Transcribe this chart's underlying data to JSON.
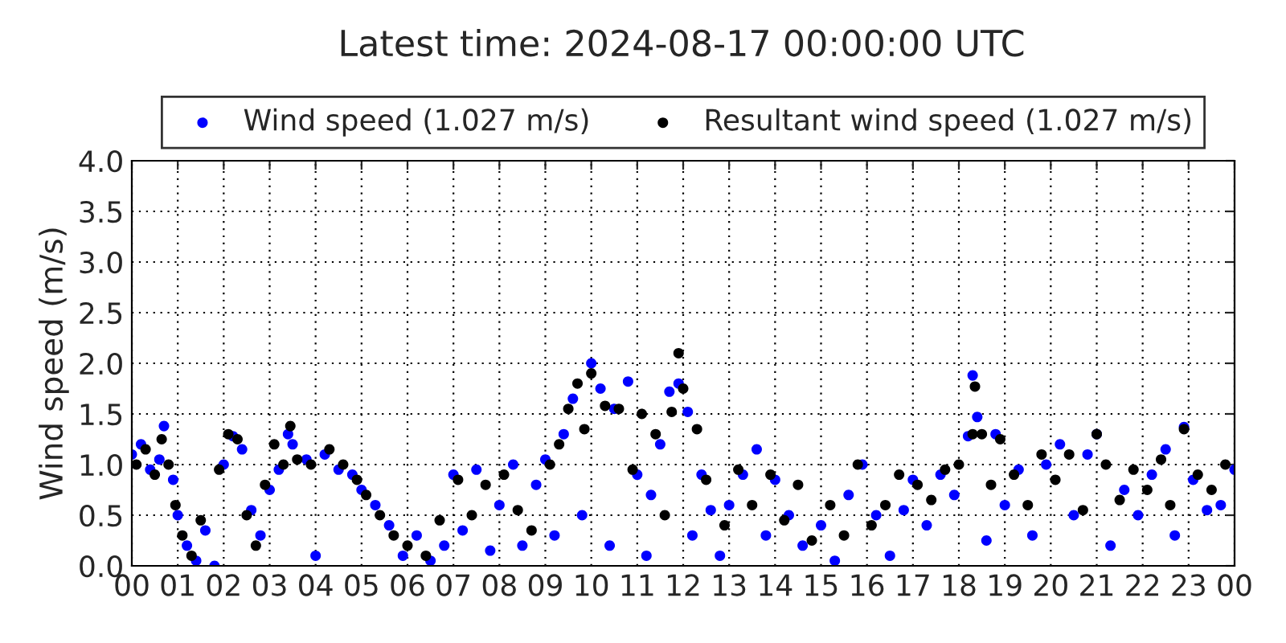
{
  "chart_data": {
    "type": "scatter",
    "title": "Latest time: 2024-08-17 00:00:00 UTC",
    "ylabel": "Wind speed (m/s)",
    "series": [
      {
        "name": "Wind speed (1.027 m/s)",
        "color": "#0000ff",
        "x": [
          0.0,
          0.2,
          0.4,
          0.6,
          0.7,
          0.9,
          1.0,
          1.2,
          1.4,
          1.6,
          1.8,
          2.0,
          2.2,
          2.4,
          2.6,
          2.8,
          3.0,
          3.2,
          3.4,
          3.5,
          3.8,
          4.0,
          4.2,
          4.5,
          4.8,
          5.0,
          5.3,
          5.6,
          5.9,
          6.2,
          6.5,
          6.8,
          7.0,
          7.2,
          7.5,
          7.8,
          8.0,
          8.3,
          8.5,
          8.8,
          9.0,
          9.2,
          9.4,
          9.6,
          9.8,
          10.0,
          10.2,
          10.4,
          10.5,
          10.8,
          11.0,
          11.2,
          11.3,
          11.5,
          11.7,
          11.9,
          12.1,
          12.2,
          12.4,
          12.6,
          12.8,
          13.0,
          13.3,
          13.6,
          13.8,
          14.0,
          14.3,
          14.6,
          15.0,
          15.3,
          15.6,
          15.9,
          16.2,
          16.5,
          16.8,
          17.0,
          17.3,
          17.6,
          17.9,
          18.2,
          18.3,
          18.4,
          18.6,
          18.8,
          19.0,
          19.3,
          19.6,
          19.9,
          20.2,
          20.5,
          20.8,
          21.0,
          21.3,
          21.6,
          21.9,
          22.2,
          22.5,
          22.7,
          22.9,
          23.1,
          23.4,
          23.7,
          24.0
        ],
        "values": [
          1.1,
          1.2,
          0.95,
          1.05,
          1.38,
          0.85,
          0.5,
          0.2,
          0.05,
          0.35,
          0.0,
          1.0,
          1.28,
          1.15,
          0.55,
          0.3,
          0.75,
          0.95,
          1.3,
          1.2,
          1.05,
          0.1,
          1.1,
          0.95,
          0.9,
          0.75,
          0.6,
          0.4,
          0.1,
          0.3,
          0.05,
          0.2,
          0.9,
          0.35,
          0.95,
          0.15,
          0.6,
          1.0,
          0.2,
          0.8,
          1.05,
          0.3,
          1.3,
          1.65,
          0.5,
          2.0,
          1.75,
          0.2,
          1.55,
          1.82,
          0.9,
          0.1,
          0.7,
          1.2,
          1.72,
          1.8,
          1.52,
          0.3,
          0.9,
          0.55,
          0.1,
          0.6,
          0.9,
          1.15,
          0.3,
          0.85,
          0.5,
          0.2,
          0.4,
          0.05,
          0.7,
          1.0,
          0.5,
          0.1,
          0.55,
          0.85,
          0.4,
          0.9,
          0.7,
          1.28,
          1.88,
          1.47,
          0.25,
          1.3,
          0.6,
          0.95,
          0.3,
          1.0,
          1.2,
          0.5,
          1.1,
          1.3,
          0.2,
          0.75,
          0.5,
          0.9,
          1.15,
          0.3,
          1.37,
          0.85,
          0.55,
          0.6,
          0.95
        ]
      },
      {
        "name": "Resultant wind speed (1.027 m/s)",
        "color": "#000000",
        "x": [
          0.1,
          0.3,
          0.5,
          0.65,
          0.8,
          0.95,
          1.1,
          1.3,
          1.5,
          1.9,
          2.1,
          2.3,
          2.5,
          2.7,
          2.9,
          3.1,
          3.3,
          3.45,
          3.6,
          3.9,
          4.3,
          4.6,
          4.9,
          5.1,
          5.4,
          5.7,
          6.0,
          6.4,
          6.7,
          7.1,
          7.4,
          7.7,
          8.1,
          8.4,
          8.7,
          9.1,
          9.3,
          9.5,
          9.7,
          9.85,
          10.0,
          10.3,
          10.6,
          10.9,
          11.1,
          11.4,
          11.6,
          11.75,
          11.9,
          12.0,
          12.3,
          12.5,
          12.9,
          13.2,
          13.5,
          13.9,
          14.2,
          14.5,
          14.8,
          15.2,
          15.5,
          15.8,
          16.1,
          16.4,
          16.7,
          17.1,
          17.4,
          17.7,
          18.0,
          18.3,
          18.35,
          18.5,
          18.7,
          18.9,
          19.2,
          19.5,
          19.8,
          20.1,
          20.4,
          20.7,
          21.0,
          21.2,
          21.5,
          21.8,
          22.1,
          22.4,
          22.6,
          22.9,
          23.2,
          23.5,
          23.8
        ],
        "values": [
          1.0,
          1.15,
          0.9,
          1.25,
          1.0,
          0.6,
          0.3,
          0.1,
          0.45,
          0.95,
          1.3,
          1.25,
          0.5,
          0.2,
          0.8,
          1.2,
          1.0,
          1.38,
          1.05,
          1.0,
          1.15,
          1.0,
          0.85,
          0.7,
          0.5,
          0.3,
          0.2,
          0.1,
          0.45,
          0.85,
          0.5,
          0.8,
          0.9,
          0.55,
          0.35,
          1.0,
          1.2,
          1.55,
          1.8,
          1.35,
          1.9,
          1.58,
          1.55,
          0.95,
          1.5,
          1.3,
          0.5,
          1.52,
          2.1,
          1.75,
          1.35,
          0.85,
          0.4,
          0.95,
          0.6,
          0.9,
          0.45,
          0.8,
          0.25,
          0.6,
          0.3,
          1.0,
          0.4,
          0.6,
          0.9,
          0.8,
          0.65,
          0.95,
          1.0,
          1.3,
          1.77,
          1.3,
          0.8,
          1.25,
          0.9,
          0.6,
          1.1,
          0.85,
          1.1,
          0.55,
          1.3,
          1.0,
          0.65,
          0.95,
          0.75,
          1.05,
          0.6,
          1.35,
          0.9,
          0.75,
          1.0
        ]
      }
    ],
    "xlim": [
      0,
      24
    ],
    "xticks": [
      {
        "value": 0,
        "label": "00"
      },
      {
        "value": 1,
        "label": "01"
      },
      {
        "value": 2,
        "label": "02"
      },
      {
        "value": 3,
        "label": "03"
      },
      {
        "value": 4,
        "label": "04"
      },
      {
        "value": 5,
        "label": "05"
      },
      {
        "value": 6,
        "label": "06"
      },
      {
        "value": 7,
        "label": "07"
      },
      {
        "value": 8,
        "label": "08"
      },
      {
        "value": 9,
        "label": "09"
      },
      {
        "value": 10,
        "label": "10"
      },
      {
        "value": 11,
        "label": "11"
      },
      {
        "value": 12,
        "label": "12"
      },
      {
        "value": 13,
        "label": "13"
      },
      {
        "value": 14,
        "label": "14"
      },
      {
        "value": 15,
        "label": "15"
      },
      {
        "value": 16,
        "label": "16"
      },
      {
        "value": 17,
        "label": "17"
      },
      {
        "value": 18,
        "label": "18"
      },
      {
        "value": 19,
        "label": "19"
      },
      {
        "value": 20,
        "label": "20"
      },
      {
        "value": 21,
        "label": "21"
      },
      {
        "value": 22,
        "label": "22"
      },
      {
        "value": 23,
        "label": "23"
      },
      {
        "value": 24,
        "label": "00"
      }
    ],
    "ylim": [
      0.0,
      4.0
    ],
    "yticks": [
      {
        "value": 0,
        "label": "0.0"
      },
      {
        "value": 0.5,
        "label": "0.5"
      },
      {
        "value": 1,
        "label": "1.0"
      },
      {
        "value": 1.5,
        "label": "1.5"
      },
      {
        "value": 2,
        "label": "2.0"
      },
      {
        "value": 2.5,
        "label": "2.5"
      },
      {
        "value": 3,
        "label": "3.0"
      },
      {
        "value": 3.5,
        "label": "3.5"
      },
      {
        "value": 4,
        "label": "4.0"
      }
    ],
    "grid": true,
    "legend": "top",
    "marker": "circle"
  }
}
